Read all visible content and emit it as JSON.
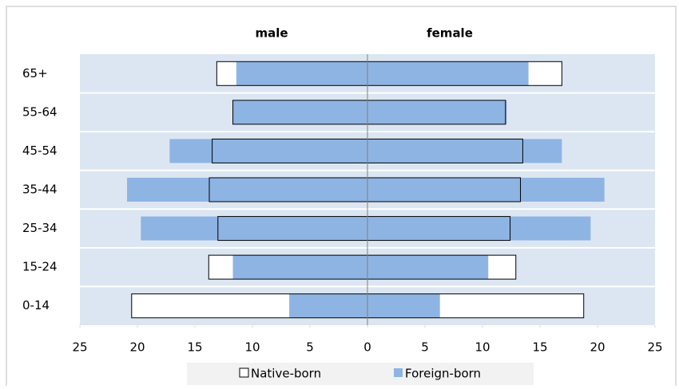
{
  "chart_data": {
    "type": "pyramid",
    "annotations": [
      "male",
      "female"
    ],
    "categories": [
      "65+",
      "55-64",
      "45-54",
      "35-44",
      "25-34",
      "15-24",
      "0-14"
    ],
    "series": [
      {
        "name": "Native-born",
        "color": "#ffffff",
        "outline": "#000000",
        "male_values": [
          -13.1,
          -11.7,
          -13.5,
          -13.75,
          -13.0,
          -13.8,
          -20.5
        ],
        "female_values": [
          16.9,
          12.0,
          13.5,
          13.3,
          12.4,
          12.9,
          18.8
        ]
      },
      {
        "name": "Foreign-born",
        "color": "#8eb4e3",
        "male_values": [
          -11.4,
          -11.7,
          -17.2,
          -20.9,
          -19.7,
          -11.7,
          -6.8
        ],
        "female_values": [
          14.0,
          12.1,
          16.9,
          20.6,
          19.4,
          10.5,
          6.3
        ]
      }
    ],
    "xlim": [
      -25,
      25
    ],
    "xticks": [
      {
        "value": -25,
        "label": "25"
      },
      {
        "value": -20,
        "label": "20"
      },
      {
        "value": -15,
        "label": "15"
      },
      {
        "value": -10,
        "label": "10"
      },
      {
        "value": -5,
        "label": "5"
      },
      0,
      5,
      10,
      15,
      20,
      25
    ],
    "legend": "bottom"
  }
}
